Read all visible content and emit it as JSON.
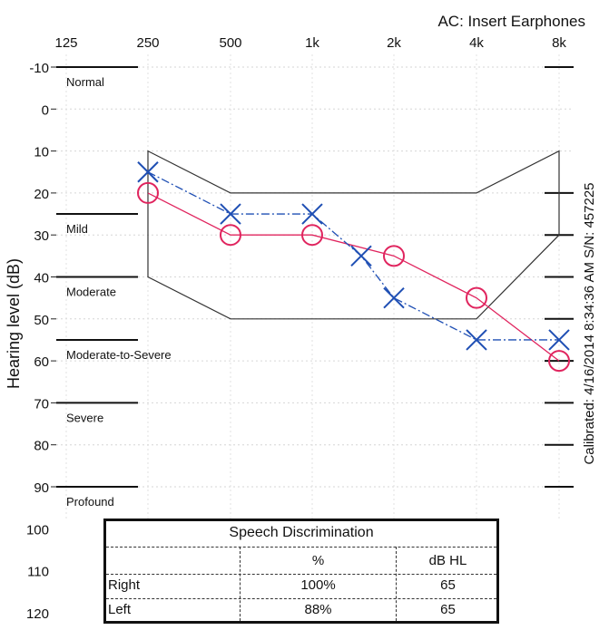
{
  "header": {
    "transducer": "AC: Insert Earphones"
  },
  "side_note": {
    "calibration": "Calibrated: 4/16/2014 8:34:36 AM  S/N: 457225"
  },
  "chart_data": {
    "type": "line",
    "title": "",
    "xlabel": "",
    "ylabel": "Hearing level (dB)",
    "x_categories": [
      "125",
      "250",
      "500",
      "1k",
      "2k",
      "4k",
      "8k"
    ],
    "y_ticks": [
      -10,
      0,
      10,
      20,
      30,
      40,
      50,
      60,
      70,
      80,
      90,
      100,
      110,
      120
    ],
    "ylim": [
      -10,
      120
    ],
    "y_inverted": true,
    "hearing_bands": [
      {
        "label": "Normal",
        "from": -10,
        "to": 25
      },
      {
        "label": "Mild",
        "from": 25,
        "to": 40
      },
      {
        "label": "Moderate",
        "from": 40,
        "to": 55
      },
      {
        "label": "Moderate-to-Severe",
        "from": 55,
        "to": 70
      },
      {
        "label": "Severe",
        "from": 70,
        "to": 90
      },
      {
        "label": "Profound",
        "from": 90,
        "to": 120
      }
    ],
    "speech_banana": {
      "upper": [
        {
          "x": "250",
          "y": 10
        },
        {
          "x": "500",
          "y": 20
        },
        {
          "x": "1k",
          "y": 20
        },
        {
          "x": "2k",
          "y": 20
        },
        {
          "x": "4k",
          "y": 20
        },
        {
          "x": "8k",
          "y": 10
        }
      ],
      "lower": [
        {
          "x": "8k",
          "y": 30
        },
        {
          "x": "4k",
          "y": 50
        },
        {
          "x": "2k",
          "y": 50
        },
        {
          "x": "1k",
          "y": 50
        },
        {
          "x": "500",
          "y": 50
        },
        {
          "x": "250",
          "y": 40
        }
      ]
    },
    "series": [
      {
        "name": "Right",
        "symbol": "O",
        "color": "#e0245e",
        "points": [
          {
            "x": "250",
            "y": 20
          },
          {
            "x": "500",
            "y": 30
          },
          {
            "x": "1k",
            "y": 30
          },
          {
            "x": "2k",
            "y": 35
          },
          {
            "x": "4k",
            "y": 45
          },
          {
            "x": "8k",
            "y": 60
          }
        ]
      },
      {
        "name": "Left",
        "symbol": "X",
        "color": "#1f4fb4",
        "points": [
          {
            "x": "250",
            "y": 15
          },
          {
            "x": "500",
            "y": 25
          },
          {
            "x": "1k",
            "y": 25
          },
          {
            "x": "1.5k",
            "y": 35
          },
          {
            "x": "2k",
            "y": 45
          },
          {
            "x": "4k",
            "y": 55
          },
          {
            "x": "8k",
            "y": 55
          }
        ]
      }
    ]
  },
  "speech_table": {
    "title": "Speech Discrimination",
    "col_pct": "%",
    "col_db": "dB HL",
    "rows": [
      {
        "ear": "Right",
        "pct": "100%",
        "db": "65"
      },
      {
        "ear": "Left",
        "pct": "88%",
        "db": "65"
      }
    ]
  }
}
